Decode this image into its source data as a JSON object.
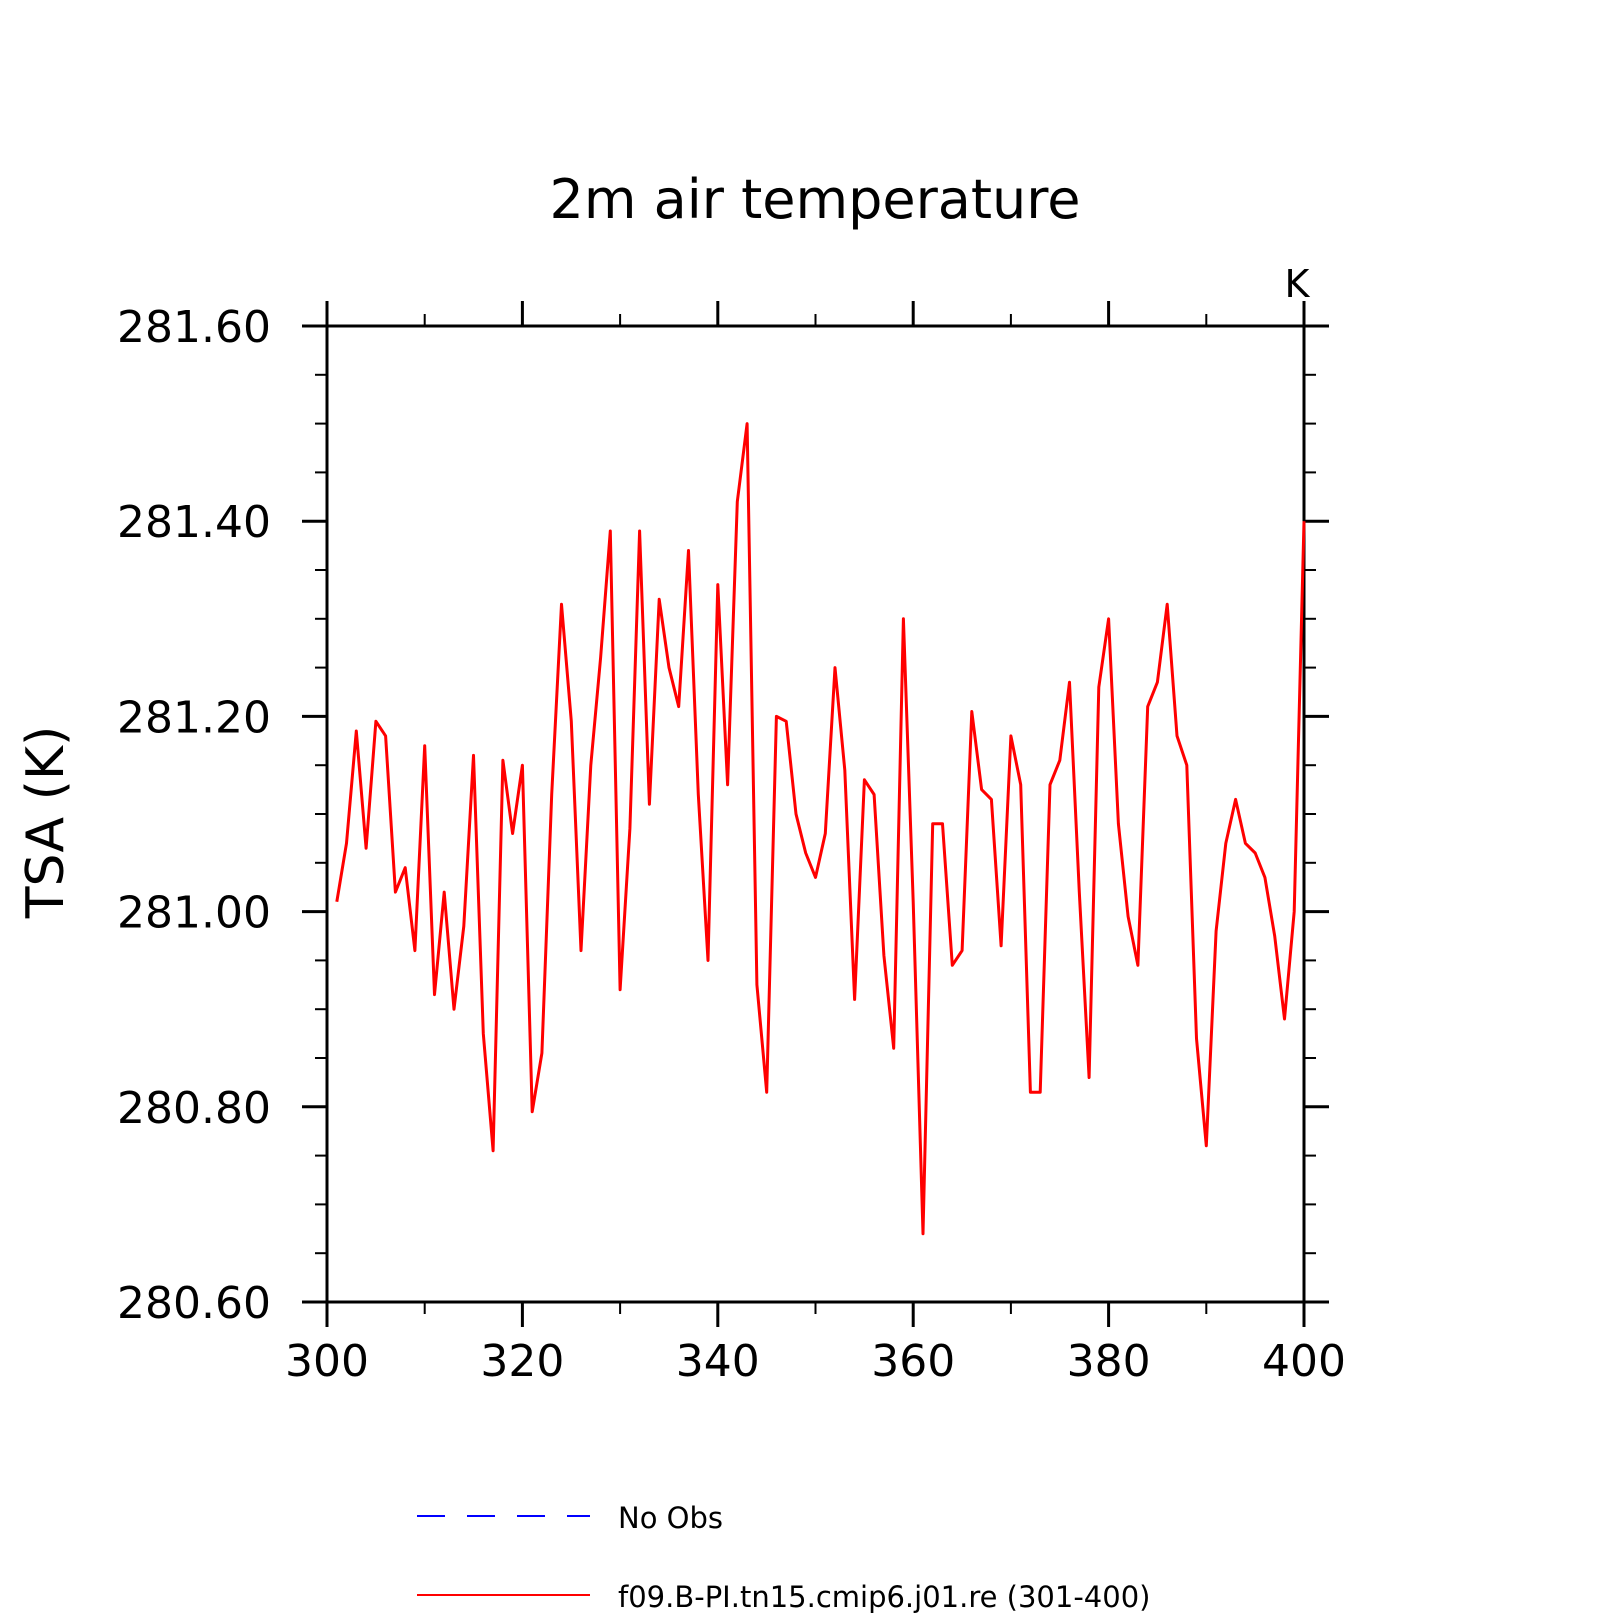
{
  "chart_data": {
    "type": "line",
    "title": "2m air temperature",
    "units": "K",
    "ylabel": "TSA  (K)",
    "xlabel": "",
    "xlim": [
      300,
      400
    ],
    "ylim": [
      280.6,
      281.6
    ],
    "x_ticks": [
      300,
      320,
      340,
      360,
      380,
      400
    ],
    "x_tick_labels": [
      "300",
      "320",
      "340",
      "360",
      "380",
      "400"
    ],
    "y_ticks": [
      280.6,
      280.8,
      281.0,
      281.2,
      281.4,
      281.6
    ],
    "y_tick_labels": [
      "280.60",
      "280.80",
      "281.00",
      "281.20",
      "281.40",
      "281.60"
    ],
    "x_minor_step": 10,
    "y_minor_step": 0.05,
    "grid": false,
    "legend_position": "bottom",
    "series": [
      {
        "name": "No Obs",
        "color": "#0000ff",
        "dash": "dashed",
        "x": [],
        "values": []
      },
      {
        "name": "f09.B-PI.tn15.cmip6.j01.re (301-400)",
        "color": "#ff0000",
        "dash": "solid",
        "x": [
          301,
          302,
          303,
          304,
          305,
          306,
          307,
          308,
          309,
          310,
          311,
          312,
          313,
          314,
          315,
          316,
          317,
          318,
          319,
          320,
          321,
          322,
          323,
          324,
          325,
          326,
          327,
          328,
          329,
          330,
          331,
          332,
          333,
          334,
          335,
          336,
          337,
          338,
          339,
          340,
          341,
          342,
          343,
          344,
          345,
          346,
          347,
          348,
          349,
          350,
          351,
          352,
          353,
          354,
          355,
          356,
          357,
          358,
          359,
          360,
          361,
          362,
          363,
          364,
          365,
          366,
          367,
          368,
          369,
          370,
          371,
          372,
          373,
          374,
          375,
          376,
          377,
          378,
          379,
          380,
          381,
          382,
          383,
          384,
          385,
          386,
          387,
          388,
          389,
          390,
          391,
          392,
          393,
          394,
          395,
          396,
          397,
          398,
          399,
          400
        ],
        "values": [
          281.01,
          281.07,
          281.185,
          281.065,
          281.195,
          281.18,
          281.02,
          281.045,
          280.96,
          281.17,
          280.915,
          281.02,
          280.9,
          280.985,
          281.16,
          280.875,
          280.755,
          281.155,
          281.08,
          281.15,
          280.795,
          280.855,
          281.12,
          281.315,
          281.195,
          280.96,
          281.15,
          281.26,
          281.39,
          280.92,
          281.085,
          281.39,
          281.11,
          281.32,
          281.25,
          281.21,
          281.37,
          281.12,
          280.95,
          281.335,
          281.13,
          281.42,
          281.5,
          280.925,
          280.815,
          281.2,
          281.195,
          281.1,
          281.06,
          281.035,
          281.08,
          281.25,
          281.145,
          280.91,
          281.135,
          281.12,
          280.955,
          280.86,
          281.3,
          281.01,
          280.67,
          281.09,
          281.09,
          280.945,
          280.96,
          281.205,
          281.125,
          281.115,
          280.965,
          281.18,
          281.13,
          280.815,
          280.815,
          281.13,
          281.155,
          281.235,
          281.02,
          280.83,
          281.23,
          281.3,
          281.09,
          280.995,
          280.945,
          281.21,
          281.235,
          281.315,
          281.18,
          281.15,
          280.87,
          280.76,
          280.98,
          281.07,
          281.115,
          281.07,
          281.06,
          281.035,
          280.975,
          280.89,
          281.0,
          281.4
        ]
      }
    ]
  }
}
